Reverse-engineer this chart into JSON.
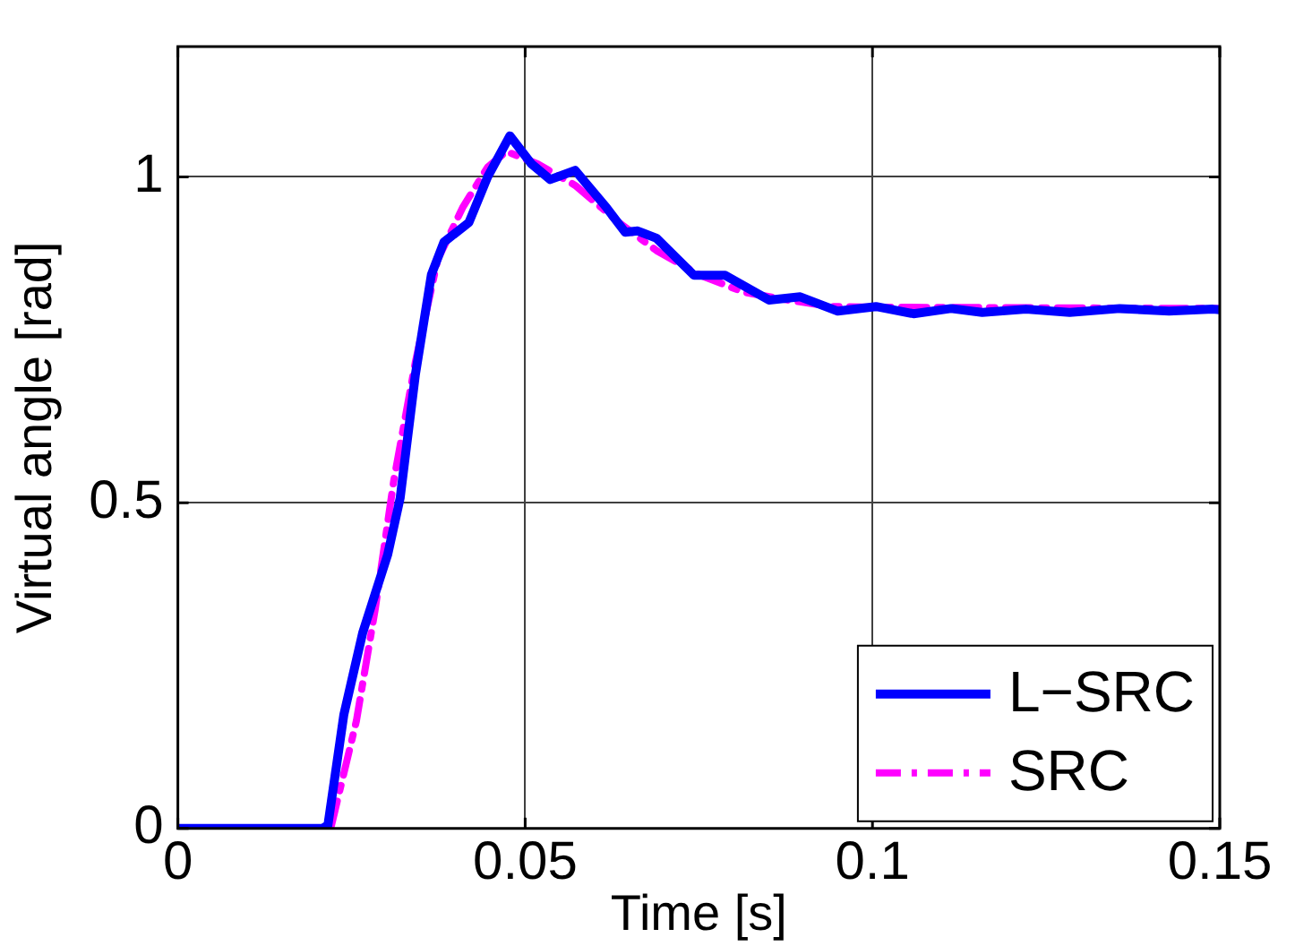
{
  "chart_data": {
    "type": "line",
    "xlabel": "Time [s]",
    "ylabel": "Virtual angle [rad]",
    "xlim": [
      0,
      0.15
    ],
    "ylim": [
      0,
      1.2
    ],
    "xticks": [
      0,
      0.05,
      0.1,
      0.15
    ],
    "yticks": [
      0,
      0.5,
      1
    ],
    "grid": true,
    "legend": "bottom right",
    "marker": "none",
    "series": [
      {
        "name": "L−SRC",
        "color": "#0000ff",
        "line_style": "solid",
        "x": [
          0,
          0.0208,
          0.0216,
          0.0239,
          0.0266,
          0.0302,
          0.032,
          0.0342,
          0.0365,
          0.0383,
          0.0419,
          0.0446,
          0.0478,
          0.0509,
          0.0536,
          0.0572,
          0.0617,
          0.0644,
          0.0662,
          0.0689,
          0.0743,
          0.0788,
          0.0851,
          0.0896,
          0.095,
          0.1005,
          0.1059,
          0.1113,
          0.1158,
          0.1221,
          0.1284,
          0.1356,
          0.1427,
          0.149,
          0.15
        ],
        "values": [
          0,
          0,
          0.005,
          0.175,
          0.3,
          0.42,
          0.507,
          0.697,
          0.85,
          0.9,
          0.93,
          1.0,
          1.063,
          1.02,
          0.996,
          1.01,
          0.953,
          0.915,
          0.917,
          0.906,
          0.849,
          0.849,
          0.811,
          0.816,
          0.794,
          0.801,
          0.79,
          0.798,
          0.792,
          0.797,
          0.792,
          0.798,
          0.794,
          0.797,
          0.796
        ]
      },
      {
        "name": "SRC",
        "color": "#ff00ff",
        "line_style": "dashed",
        "x": [
          0,
          0.022,
          0.0257,
          0.0284,
          0.0311,
          0.0342,
          0.0374,
          0.041,
          0.0446,
          0.0473,
          0.0518,
          0.0572,
          0.0635,
          0.0689,
          0.0752,
          0.0815,
          0.0878,
          0.0941,
          0.1005,
          0.15
        ],
        "values": [
          0,
          0,
          0.165,
          0.336,
          0.535,
          0.716,
          0.873,
          0.953,
          1.015,
          1.039,
          1.02,
          0.987,
          0.93,
          0.887,
          0.849,
          0.823,
          0.811,
          0.801,
          0.8,
          0.798
        ]
      }
    ]
  }
}
